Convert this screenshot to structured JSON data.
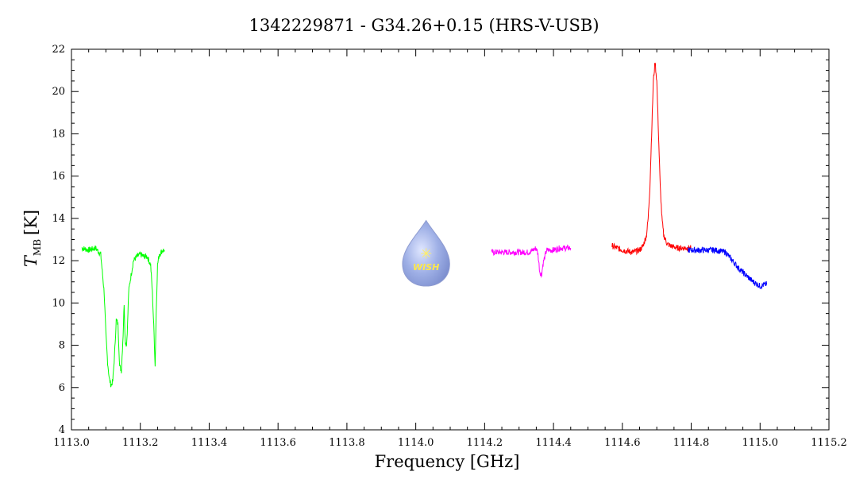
{
  "chart_data": {
    "type": "line",
    "title": "1342229871 - G34.26+0.15 (HRS-V-USB)",
    "xlabel": "Frequency [GHz]",
    "ylabel_main": "T",
    "ylabel_sub": "MB",
    "ylabel_unit": "[K]",
    "xlim": [
      1113.0,
      1115.2
    ],
    "ylim": [
      4,
      22
    ],
    "xticks": [
      1113.0,
      1113.2,
      1113.4,
      1113.6,
      1113.8,
      1114.0,
      1114.2,
      1114.4,
      1114.6,
      1114.8,
      1115.0,
      1115.2
    ],
    "xtick_labels": [
      "1113.0",
      "1113.2",
      "1113.4",
      "1113.6",
      "1113.8",
      "1114.0",
      "1114.2",
      "1114.4",
      "1114.6",
      "1114.8",
      "1115.0",
      "1115.2"
    ],
    "yticks": [
      4,
      6,
      8,
      10,
      12,
      14,
      16,
      18,
      20,
      22
    ],
    "ytick_labels": [
      "4",
      "6",
      "8",
      "10",
      "12",
      "14",
      "16",
      "18",
      "20",
      "22"
    ],
    "grid": false,
    "logo": {
      "text": "WISH",
      "icon": "water-drop-icon",
      "x": 1114.03
    },
    "series": [
      {
        "color": "#00ff00",
        "x": [
          1113.03,
          1113.05,
          1113.07,
          1113.085,
          1113.095,
          1113.1,
          1113.105,
          1113.11,
          1113.115,
          1113.12,
          1113.125,
          1113.13,
          1113.135,
          1113.14,
          1113.145,
          1113.15,
          1113.153,
          1113.156,
          1113.16,
          1113.163,
          1113.166,
          1113.17,
          1113.175,
          1113.18,
          1113.19,
          1113.2,
          1113.21,
          1113.22,
          1113.23,
          1113.235,
          1113.24,
          1113.243,
          1113.246,
          1113.25,
          1113.255,
          1113.26,
          1113.265,
          1113.27
        ],
        "y": [
          12.6,
          12.5,
          12.6,
          12.3,
          10.5,
          8.5,
          7.2,
          6.4,
          6.1,
          6.3,
          7.5,
          9.2,
          9.0,
          7.0,
          6.8,
          8.5,
          10.0,
          8.2,
          8.0,
          9.0,
          10.5,
          11.0,
          11.5,
          12.0,
          12.2,
          12.3,
          12.2,
          12.2,
          11.8,
          10.5,
          8.5,
          7.0,
          9.5,
          11.8,
          12.3,
          12.4,
          12.5,
          12.5
        ]
      },
      {
        "color": "#ff00ff",
        "x": [
          1114.22,
          1114.25,
          1114.28,
          1114.31,
          1114.33,
          1114.34,
          1114.35,
          1114.355,
          1114.36,
          1114.365,
          1114.37,
          1114.38,
          1114.4,
          1114.42,
          1114.45
        ],
        "y": [
          12.4,
          12.4,
          12.4,
          12.4,
          12.4,
          12.5,
          12.6,
          12.3,
          11.5,
          11.3,
          11.9,
          12.5,
          12.5,
          12.6,
          12.6
        ]
      },
      {
        "color": "#ff0000",
        "x": [
          1114.57,
          1114.6,
          1114.63,
          1114.65,
          1114.66,
          1114.67,
          1114.675,
          1114.68,
          1114.685,
          1114.69,
          1114.695,
          1114.7,
          1114.705,
          1114.71,
          1114.715,
          1114.72,
          1114.73,
          1114.74,
          1114.76,
          1114.8
        ],
        "y": [
          12.7,
          12.5,
          12.4,
          12.5,
          12.7,
          13.2,
          14.0,
          15.5,
          18.0,
          20.5,
          21.4,
          20.5,
          18.0,
          15.5,
          14.0,
          13.2,
          12.8,
          12.7,
          12.6,
          12.6
        ]
      },
      {
        "color": "#0000ff",
        "x": [
          1114.79,
          1114.83,
          1114.87,
          1114.9,
          1114.92,
          1114.94,
          1114.96,
          1114.98,
          1115.0,
          1115.02
        ],
        "y": [
          12.5,
          12.5,
          12.5,
          12.4,
          12.0,
          11.6,
          11.3,
          11.0,
          10.8,
          10.9
        ]
      }
    ]
  }
}
